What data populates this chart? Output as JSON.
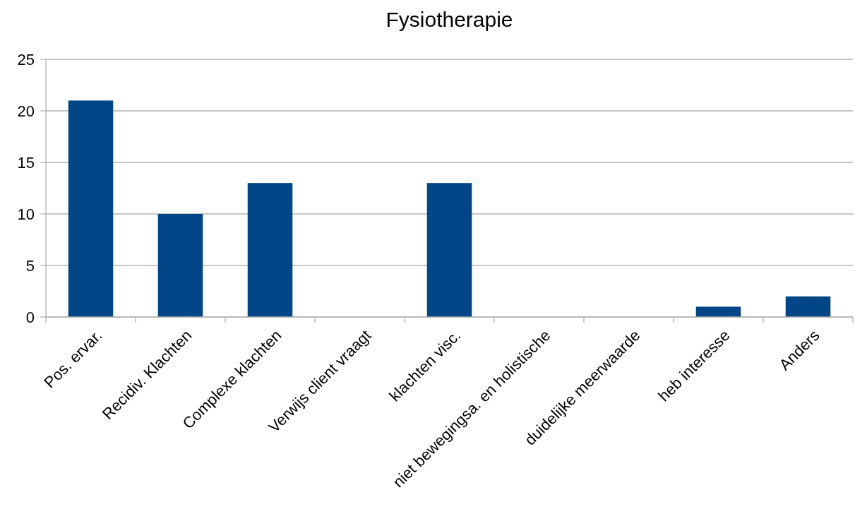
{
  "chart_data": {
    "type": "bar",
    "title": "Fysiotherapie",
    "categories": [
      "Pos. ervar.",
      "Recidiv. Klachten",
      "Complexe klachten",
      "Verwijs client vraagt",
      "klachten visc.",
      "niet bewegingsa. en holistische",
      "duidelijke meerwaarde",
      "heb interesse",
      "Anders"
    ],
    "values": [
      21,
      10,
      13,
      0,
      13,
      0,
      0,
      1,
      2
    ],
    "color": "#004586",
    "ylim": [
      0,
      25
    ],
    "yticks": [
      0,
      5,
      10,
      15,
      20,
      25
    ],
    "grid": "y"
  }
}
